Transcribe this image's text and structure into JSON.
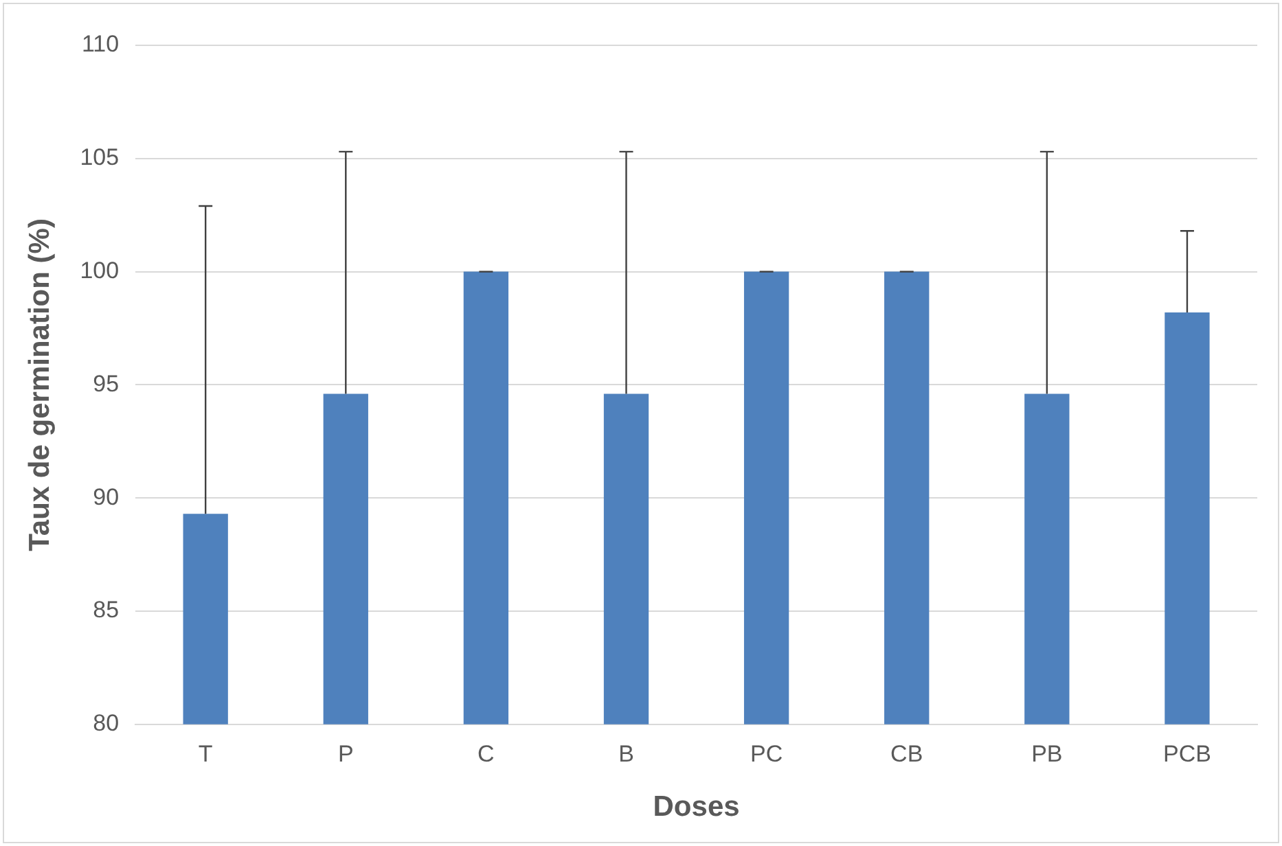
{
  "chart_data": {
    "type": "bar",
    "xlabel": "Doses",
    "ylabel": "Taux de germination (%)",
    "categories": [
      "T",
      "P",
      "C",
      "B",
      "PC",
      "CB",
      "PB",
      "PCB"
    ],
    "values": [
      89.3,
      94.6,
      100,
      94.6,
      100,
      100,
      94.6,
      98.2
    ],
    "errors": [
      [
        89.3,
        102.9
      ],
      [
        94.6,
        105.3
      ],
      0,
      [
        94.6,
        105.3
      ],
      0,
      0,
      [
        94.6,
        105.3
      ],
      [
        98.2,
        101.8
      ]
    ],
    "color": "#4f81bd",
    "ylim": [
      80,
      110
    ],
    "yticks": [
      80,
      85,
      90,
      95,
      100,
      105,
      110
    ],
    "grid": "y",
    "legend": false
  }
}
